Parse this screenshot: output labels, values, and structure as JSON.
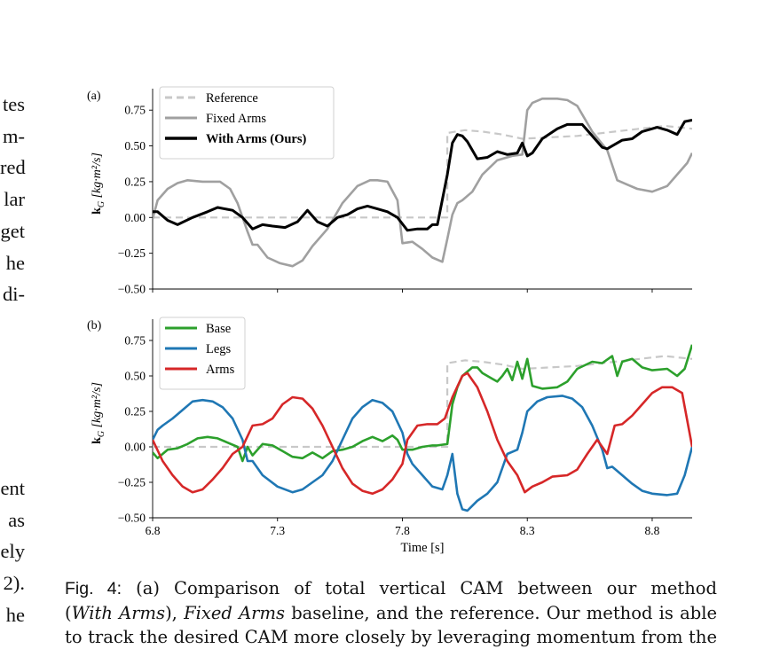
{
  "side_text": {
    "top": [
      "tes",
      "m-",
      "red",
      "lar",
      "get",
      "he",
      "di-"
    ],
    "bottom": [
      "ent",
      "as",
      "ely",
      "2).",
      "he"
    ]
  },
  "charts": [
    {
      "panel_label": "(a)",
      "ylabel": "k_G^z [kg·m²/s]",
      "ylim": [
        -0.5,
        0.9
      ],
      "yticks": [
        "−0.50",
        "−0.25",
        "0.00",
        "0.25",
        "0.50",
        "0.75"
      ],
      "ytick_values": [
        -0.5,
        -0.25,
        0.0,
        0.25,
        0.5,
        0.75
      ],
      "legend": [
        "Reference",
        "Fixed Arms",
        "With Arms (Ours)"
      ]
    },
    {
      "panel_label": "(b)",
      "ylabel": "k_G^z [kg·m²/s]",
      "ylim": [
        -0.5,
        0.9
      ],
      "yticks": [
        "−0.50",
        "−0.25",
        "0.00",
        "0.25",
        "0.50",
        "0.75"
      ],
      "ytick_values": [
        -0.5,
        -0.25,
        0.0,
        0.25,
        0.5,
        0.75
      ],
      "legend": [
        "Base",
        "Legs",
        "Arms"
      ]
    }
  ],
  "chart_data": [
    {
      "type": "line",
      "title": "",
      "xlabel": "",
      "ylabel": "k_G^z [kg·m²/s]",
      "xlim": [
        6.8,
        8.96
      ],
      "ylim": [
        -0.5,
        0.9
      ],
      "legend_position": "top-left",
      "series": [
        {
          "name": "Reference",
          "color": "#c8c8c8",
          "style": "dashed",
          "x": [
            6.8,
            7.98,
            7.98,
            8.05,
            8.12,
            8.2,
            8.28,
            8.5,
            8.7,
            8.85,
            8.96
          ],
          "y": [
            0.0,
            0.0,
            0.59,
            0.61,
            0.6,
            0.58,
            0.55,
            0.57,
            0.61,
            0.64,
            0.62
          ]
        },
        {
          "name": "Fixed Arms",
          "color": "#a0a0a0",
          "style": "solid",
          "x": [
            6.8,
            6.82,
            6.86,
            6.9,
            6.94,
            7.0,
            7.07,
            7.11,
            7.14,
            7.18,
            7.2,
            7.22,
            7.26,
            7.31,
            7.36,
            7.4,
            7.44,
            7.5,
            7.56,
            7.62,
            7.67,
            7.7,
            7.74,
            7.78,
            7.8,
            7.84,
            7.88,
            7.92,
            7.96,
            7.98,
            8.0,
            8.02,
            8.04,
            8.08,
            8.12,
            8.18,
            8.24,
            8.28,
            8.3,
            8.32,
            8.36,
            8.42,
            8.46,
            8.5,
            8.56,
            8.62,
            8.66,
            8.7,
            8.74,
            8.8,
            8.86,
            8.9,
            8.94,
            8.96
          ],
          "y": [
            -0.01,
            0.12,
            0.2,
            0.24,
            0.26,
            0.25,
            0.25,
            0.2,
            0.1,
            -0.1,
            -0.19,
            -0.19,
            -0.28,
            -0.32,
            -0.34,
            -0.3,
            -0.2,
            -0.08,
            0.1,
            0.22,
            0.26,
            0.26,
            0.25,
            0.12,
            -0.18,
            -0.17,
            -0.22,
            -0.28,
            -0.31,
            -0.15,
            0.02,
            0.1,
            0.12,
            0.18,
            0.3,
            0.4,
            0.43,
            0.44,
            0.75,
            0.8,
            0.83,
            0.83,
            0.82,
            0.78,
            0.6,
            0.47,
            0.26,
            0.23,
            0.2,
            0.18,
            0.22,
            0.3,
            0.38,
            0.45
          ]
        },
        {
          "name": "With Arms (Ours)",
          "color": "#000000",
          "style": "solid",
          "x": [
            6.8,
            6.82,
            6.86,
            6.9,
            6.96,
            7.02,
            7.06,
            7.12,
            7.16,
            7.2,
            7.24,
            7.28,
            7.33,
            7.38,
            7.42,
            7.46,
            7.5,
            7.54,
            7.58,
            7.62,
            7.66,
            7.7,
            7.74,
            7.78,
            7.82,
            7.86,
            7.9,
            7.92,
            7.94,
            7.98,
            8.0,
            8.02,
            8.04,
            8.06,
            8.1,
            8.14,
            8.18,
            8.22,
            8.26,
            8.28,
            8.3,
            8.32,
            8.36,
            8.42,
            8.46,
            8.52,
            8.56,
            8.6,
            8.62,
            8.64,
            8.68,
            8.72,
            8.76,
            8.82,
            8.86,
            8.9,
            8.93,
            8.96
          ],
          "y": [
            0.04,
            0.04,
            -0.02,
            -0.05,
            0.0,
            0.04,
            0.07,
            0.05,
            0.0,
            -0.08,
            -0.05,
            -0.06,
            -0.07,
            -0.03,
            0.05,
            -0.03,
            -0.06,
            0.0,
            0.02,
            0.06,
            0.08,
            0.06,
            0.04,
            0.0,
            -0.09,
            -0.08,
            -0.08,
            -0.05,
            -0.05,
            0.3,
            0.52,
            0.58,
            0.57,
            0.53,
            0.41,
            0.42,
            0.46,
            0.44,
            0.45,
            0.52,
            0.43,
            0.45,
            0.55,
            0.62,
            0.65,
            0.65,
            0.57,
            0.49,
            0.48,
            0.5,
            0.54,
            0.55,
            0.6,
            0.63,
            0.61,
            0.58,
            0.67,
            0.68
          ]
        }
      ]
    },
    {
      "type": "line",
      "title": "",
      "xlabel": "Time [s]",
      "ylabel": "k_G^z [kg·m²/s]",
      "xlim": [
        6.8,
        8.96
      ],
      "ylim": [
        -0.5,
        0.9
      ],
      "xticks": [
        "6.8",
        "7.3",
        "7.8",
        "8.3",
        "8.8"
      ],
      "xtick_values": [
        6.8,
        7.3,
        7.8,
        8.3,
        8.8
      ],
      "legend_position": "top-left",
      "series": [
        {
          "name": "Reference",
          "color": "#c8c8c8",
          "style": "dashed",
          "in_legend": false,
          "x": [
            6.8,
            7.98,
            7.98,
            8.05,
            8.12,
            8.2,
            8.28,
            8.5,
            8.7,
            8.85,
            8.96
          ],
          "y": [
            0.0,
            0.0,
            0.59,
            0.61,
            0.6,
            0.58,
            0.55,
            0.57,
            0.61,
            0.64,
            0.62
          ]
        },
        {
          "name": "Base",
          "color": "#2ca02c",
          "style": "solid",
          "x": [
            6.8,
            6.82,
            6.86,
            6.9,
            6.94,
            6.98,
            7.02,
            7.06,
            7.1,
            7.14,
            7.16,
            7.18,
            7.2,
            7.24,
            7.28,
            7.32,
            7.36,
            7.4,
            7.44,
            7.48,
            7.52,
            7.56,
            7.6,
            7.64,
            7.68,
            7.72,
            7.76,
            7.78,
            7.8,
            7.84,
            7.88,
            7.92,
            7.94,
            7.98,
            8.0,
            8.02,
            8.04,
            8.08,
            8.1,
            8.12,
            8.16,
            8.18,
            8.2,
            8.22,
            8.24,
            8.26,
            8.28,
            8.3,
            8.32,
            8.36,
            8.42,
            8.46,
            8.5,
            8.56,
            8.6,
            8.64,
            8.66,
            8.68,
            8.72,
            8.76,
            8.8,
            8.86,
            8.9,
            8.93,
            8.96
          ],
          "y": [
            -0.04,
            -0.08,
            -0.02,
            -0.01,
            0.02,
            0.06,
            0.07,
            0.06,
            0.03,
            0.0,
            -0.1,
            0.0,
            -0.06,
            0.02,
            0.01,
            -0.03,
            -0.07,
            -0.08,
            -0.04,
            -0.08,
            -0.03,
            -0.02,
            0.0,
            0.04,
            0.07,
            0.04,
            0.08,
            0.05,
            -0.02,
            -0.02,
            0.0,
            0.01,
            0.01,
            0.02,
            0.3,
            0.42,
            0.5,
            0.56,
            0.56,
            0.52,
            0.48,
            0.46,
            0.5,
            0.55,
            0.47,
            0.6,
            0.48,
            0.62,
            0.43,
            0.41,
            0.42,
            0.46,
            0.55,
            0.6,
            0.59,
            0.64,
            0.5,
            0.6,
            0.62,
            0.56,
            0.54,
            0.55,
            0.5,
            0.55,
            0.72
          ]
        },
        {
          "name": "Legs",
          "color": "#1f77b4",
          "style": "solid",
          "x": [
            6.8,
            6.82,
            6.84,
            6.88,
            6.92,
            6.96,
            7.0,
            7.04,
            7.08,
            7.12,
            7.16,
            7.18,
            7.2,
            7.24,
            7.3,
            7.36,
            7.4,
            7.44,
            7.48,
            7.52,
            7.56,
            7.6,
            7.64,
            7.68,
            7.72,
            7.76,
            7.8,
            7.82,
            7.84,
            7.88,
            7.92,
            7.96,
            7.98,
            8.0,
            8.02,
            8.04,
            8.06,
            8.1,
            8.14,
            8.18,
            8.22,
            8.26,
            8.28,
            8.3,
            8.34,
            8.38,
            8.44,
            8.48,
            8.52,
            8.56,
            8.6,
            8.62,
            8.64,
            8.68,
            8.72,
            8.76,
            8.8,
            8.86,
            8.9,
            8.93,
            8.96
          ],
          "y": [
            0.05,
            0.12,
            0.15,
            0.2,
            0.26,
            0.32,
            0.33,
            0.32,
            0.28,
            0.2,
            0.05,
            -0.1,
            -0.1,
            -0.2,
            -0.28,
            -0.32,
            -0.3,
            -0.25,
            -0.2,
            -0.1,
            0.05,
            0.2,
            0.28,
            0.33,
            0.31,
            0.25,
            0.1,
            -0.05,
            -0.12,
            -0.2,
            -0.28,
            -0.3,
            -0.2,
            -0.05,
            -0.33,
            -0.44,
            -0.45,
            -0.38,
            -0.33,
            -0.25,
            -0.05,
            -0.02,
            0.1,
            0.25,
            0.32,
            0.35,
            0.36,
            0.34,
            0.28,
            0.15,
            -0.02,
            -0.15,
            -0.14,
            -0.2,
            -0.26,
            -0.31,
            -0.33,
            -0.34,
            -0.33,
            -0.2,
            0.0
          ]
        },
        {
          "name": "Arms",
          "color": "#d62728",
          "style": "solid",
          "x": [
            6.8,
            6.84,
            6.88,
            6.92,
            6.96,
            7.0,
            7.04,
            7.08,
            7.12,
            7.16,
            7.2,
            7.24,
            7.28,
            7.32,
            7.36,
            7.4,
            7.44,
            7.48,
            7.52,
            7.56,
            7.6,
            7.64,
            7.68,
            7.72,
            7.76,
            7.8,
            7.82,
            7.86,
            7.9,
            7.94,
            7.97,
            8.0,
            8.04,
            8.06,
            8.1,
            8.14,
            8.18,
            8.22,
            8.26,
            8.29,
            8.32,
            8.36,
            8.4,
            8.46,
            8.5,
            8.54,
            8.58,
            8.62,
            8.65,
            8.68,
            8.72,
            8.76,
            8.8,
            8.84,
            8.88,
            8.92,
            8.96
          ],
          "y": [
            0.05,
            -0.1,
            -0.2,
            -0.28,
            -0.32,
            -0.3,
            -0.23,
            -0.15,
            -0.05,
            0.0,
            0.15,
            0.16,
            0.2,
            0.3,
            0.35,
            0.34,
            0.27,
            0.15,
            0.0,
            -0.15,
            -0.26,
            -0.31,
            -0.33,
            -0.3,
            -0.23,
            -0.12,
            0.05,
            0.15,
            0.16,
            0.16,
            0.2,
            0.35,
            0.5,
            0.52,
            0.42,
            0.25,
            0.05,
            -0.1,
            -0.2,
            -0.32,
            -0.28,
            -0.25,
            -0.21,
            -0.2,
            -0.16,
            -0.05,
            0.05,
            -0.05,
            0.15,
            0.16,
            0.22,
            0.3,
            0.38,
            0.42,
            0.42,
            0.38,
            0.0
          ]
        }
      ]
    }
  ],
  "caption": {
    "label": "Fig. 4:",
    "line1": "(a) Comparison of total vertical CAM between our method",
    "line2_open": "(",
    "line2_em1": "With Arms",
    "line2_mid": "), ",
    "line2_em2": "Fixed Arms",
    "line2_rest": " baseline, and the reference. Our method is able",
    "line3": "to track the desired CAM more closely by leveraging momentum from the"
  },
  "xaxis": {
    "label": "Time [s]"
  }
}
